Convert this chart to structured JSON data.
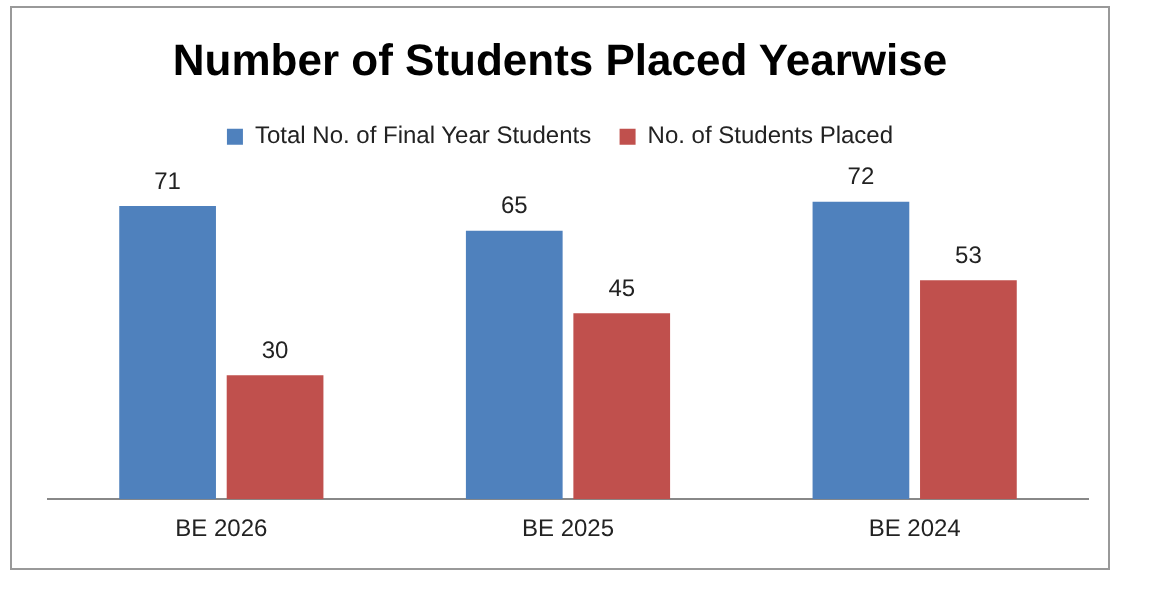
{
  "chart_data": {
    "type": "bar",
    "title": "Number of Students Placed Yearwise",
    "categories": [
      "BE 2026",
      "BE 2025",
      "BE 2024"
    ],
    "series": [
      {
        "name": "Total No. of Final Year Students",
        "color": "#4f81bd",
        "values": [
          71,
          65,
          72
        ]
      },
      {
        "name": "No. of Students Placed",
        "color": "#c0504d",
        "values": [
          30,
          45,
          53
        ]
      }
    ],
    "data_labels": true,
    "legend": "top",
    "grid": false
  }
}
